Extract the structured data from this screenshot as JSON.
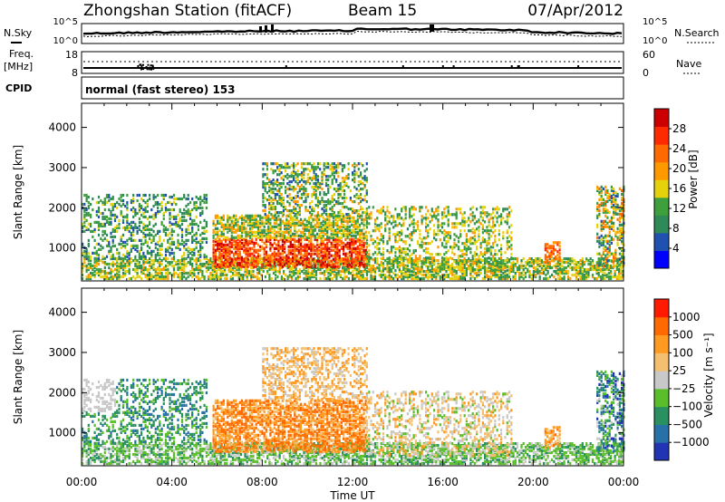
{
  "header": {
    "station": "Zhongshan Station (fitACF)",
    "beam": "Beam 15",
    "date": "07/Apr/2012"
  },
  "strip_labels": {
    "nsky": "N.Sky",
    "nsearch": "N.Search",
    "freq": "Freq.",
    "freq_unit": "[MHz]",
    "nave": "Nave",
    "cpid": "CPID",
    "cpid_text": "normal (fast stereo) 153",
    "nsky_ticks": [
      "10^5",
      "10^0"
    ],
    "nsearch_ticks": [
      "10^5",
      "10^0"
    ],
    "freq_ticks": [
      "18",
      "8"
    ],
    "nave_ticks": [
      "60",
      "0"
    ]
  },
  "colors": {
    "power": [
      "#0000ff",
      "#2050b0",
      "#2e8a57",
      "#3da03d",
      "#e6d20a",
      "#ff9900",
      "#ff6a00",
      "#ff2a00",
      "#cc0000"
    ],
    "velocity": [
      "#2034b4",
      "#2870a8",
      "#2a9060",
      "#5abe2a",
      "#c8c8c8",
      "#f4c070",
      "#ff9a20",
      "#ff6a00",
      "#ff1a00"
    ]
  },
  "chart_data": [
    {
      "type": "heatmap",
      "name": "power",
      "xlabel": "",
      "ylabel": "Slant Range [km]",
      "xlim": [
        0,
        24
      ],
      "ylim": [
        180,
        4600
      ],
      "yticks": [
        1000,
        2000,
        3000,
        4000
      ],
      "colorbar_label": "Power [dB]",
      "colorbar_ticks": [
        "28",
        "24",
        "20",
        "16",
        "12",
        "8",
        "4"
      ],
      "colorbar_range": [
        0,
        32
      ]
    },
    {
      "type": "heatmap",
      "name": "velocity",
      "xlabel": "Time UT",
      "ylabel": "Slant Range [km]",
      "xlim": [
        0,
        24
      ],
      "ylim": [
        180,
        4600
      ],
      "xticks": [
        "00:00",
        "04:00",
        "08:00",
        "12:00",
        "16:00",
        "20:00",
        "00:00"
      ],
      "yticks": [
        1000,
        2000,
        3000,
        4000
      ],
      "colorbar_label": "Velocity [m s⁻¹]",
      "colorbar_ticks": [
        "1000",
        "500",
        "100",
        "25",
        "−25",
        "−100",
        "−500",
        "−1000"
      ]
    }
  ]
}
